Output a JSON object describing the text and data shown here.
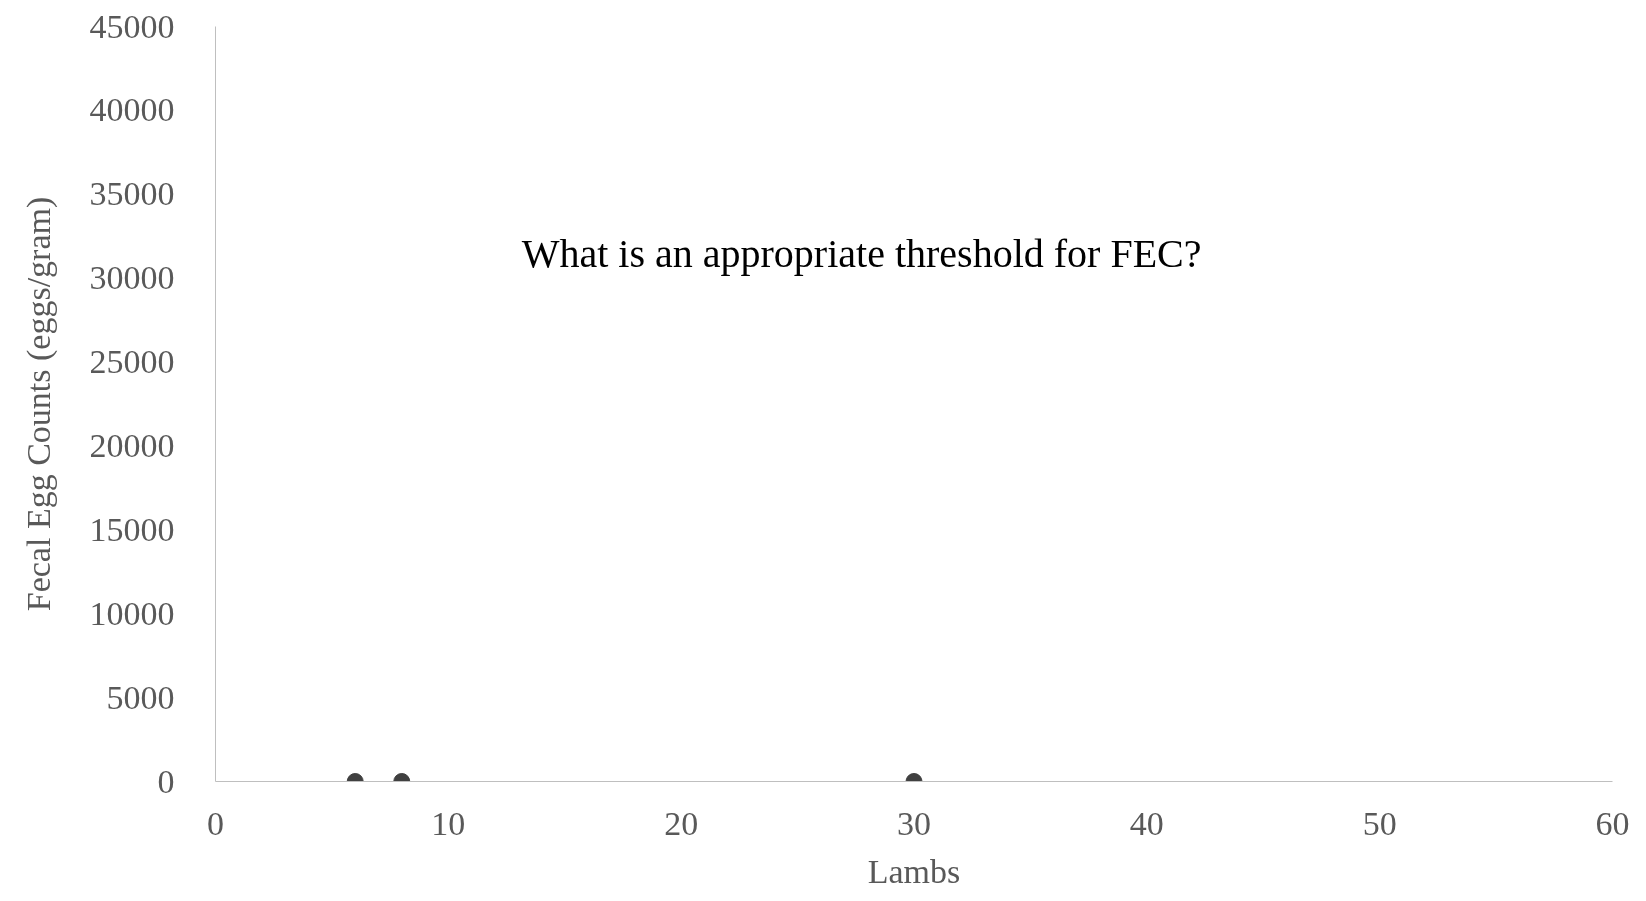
{
  "chart_data": {
    "type": "scatter",
    "xlabel": "Lambs",
    "ylabel": "Fecal Egg Counts (eggs/gram)",
    "annotations": [
      "What is an appropriate threshold for FEC?"
    ],
    "x": [
      6,
      8,
      30
    ],
    "values": [
      0,
      0,
      0
    ],
    "color": "#404040",
    "marker": "circle",
    "xlim": [
      0,
      60
    ],
    "xticks": [
      0,
      10,
      20,
      30,
      40,
      50,
      60
    ],
    "ylim": [
      0,
      45000
    ],
    "yticks": [
      0,
      5000,
      10000,
      15000,
      20000,
      25000,
      30000,
      35000,
      40000,
      45000
    ],
    "grid": false
  }
}
